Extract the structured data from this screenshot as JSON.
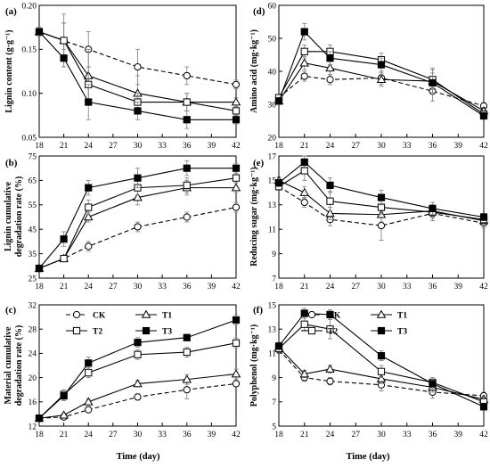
{
  "chart_data": [
    {
      "panel": "a",
      "panel_label": "(a)",
      "type": "line",
      "ylabel": "Lignin content (g·g⁻¹)",
      "xlabel": "",
      "x": [
        18,
        21,
        24,
        30,
        36,
        42
      ],
      "xticks": [
        18,
        21,
        24,
        27,
        30,
        33,
        36,
        39,
        42
      ],
      "xlim": [
        18,
        42
      ],
      "ylim": [
        0.05,
        0.2
      ],
      "yticks": [
        0.05,
        0.1,
        0.15,
        0.2
      ],
      "ytick_labels": [
        "0.05",
        "0.10",
        "0.15",
        "0.20"
      ],
      "series": [
        {
          "name": "CK",
          "values": [
            0.17,
            0.16,
            0.15,
            0.13,
            0.12,
            0.11
          ],
          "errors": [
            0.005,
            0.03,
            0.02,
            0.02,
            0.01,
            0.005
          ]
        },
        {
          "name": "T1",
          "values": [
            0.17,
            0.16,
            0.12,
            0.1,
            0.09,
            0.09
          ],
          "errors": [
            0.005,
            0.02,
            0.03,
            0.02,
            0.01,
            0.005
          ]
        },
        {
          "name": "T2",
          "values": [
            0.17,
            0.16,
            0.11,
            0.09,
            0.09,
            0.08
          ],
          "errors": [
            0.005,
            0.02,
            0.02,
            0.01,
            0.01,
            0.005
          ]
        },
        {
          "name": "T3",
          "values": [
            0.17,
            0.14,
            0.09,
            0.08,
            0.07,
            0.07
          ],
          "errors": [
            0.005,
            0.01,
            0.02,
            0.01,
            0.01,
            0.005
          ]
        }
      ]
    },
    {
      "panel": "b",
      "panel_label": "(b)",
      "type": "line",
      "ylabel": "Lignin cumulative degradation rate (%)",
      "xlabel": "",
      "x": [
        18,
        21,
        24,
        30,
        36,
        42
      ],
      "xticks": [
        18,
        21,
        24,
        27,
        30,
        33,
        36,
        39,
        42
      ],
      "xlim": [
        18,
        42
      ],
      "ylim": [
        25,
        75
      ],
      "yticks": [
        25,
        35,
        45,
        55,
        65,
        75
      ],
      "ytick_labels": [
        "25",
        "35",
        "45",
        "55",
        "65",
        "75"
      ],
      "series": [
        {
          "name": "CK",
          "values": [
            29,
            33,
            38,
            46,
            50,
            54
          ],
          "errors": [
            1,
            1,
            2,
            2,
            2,
            2
          ]
        },
        {
          "name": "T1",
          "values": [
            29,
            33,
            50,
            58,
            62,
            62
          ],
          "errors": [
            1,
            1,
            2,
            3,
            3,
            2
          ]
        },
        {
          "name": "T2",
          "values": [
            29,
            33,
            54,
            62,
            63,
            66
          ],
          "errors": [
            1,
            1,
            3,
            3,
            3,
            2
          ]
        },
        {
          "name": "T3",
          "values": [
            29,
            41,
            62,
            66,
            70,
            70
          ],
          "errors": [
            1,
            3,
            3,
            4,
            3,
            2
          ]
        }
      ]
    },
    {
      "panel": "c",
      "panel_label": "(c)",
      "type": "line",
      "ylabel": "Material cumulative degradation rate (%)",
      "xlabel": "Time (day)",
      "x": [
        18,
        21,
        24,
        30,
        36,
        42
      ],
      "xticks": [
        18,
        21,
        24,
        27,
        30,
        33,
        36,
        39,
        42
      ],
      "xlim": [
        18,
        42
      ],
      "ylim": [
        12,
        32
      ],
      "yticks": [
        12,
        16,
        20,
        24,
        28,
        32
      ],
      "ytick_labels": [
        "12",
        "16",
        "20",
        "24",
        "28",
        "32"
      ],
      "series": [
        {
          "name": "CK",
          "values": [
            13.3,
            13.5,
            14.7,
            16.8,
            18.0,
            19.0
          ],
          "errors": [
            0.3,
            0.3,
            0.5,
            0.5,
            1.5,
            0.5
          ]
        },
        {
          "name": "T1",
          "values": [
            13.3,
            13.8,
            16.0,
            19.0,
            19.7,
            20.6
          ],
          "errors": [
            0.3,
            0.3,
            0.5,
            0.5,
            0.8,
            0.8
          ]
        },
        {
          "name": "T2",
          "values": [
            13.3,
            17.2,
            20.8,
            23.8,
            24.2,
            25.7
          ],
          "errors": [
            0.3,
            0.8,
            0.8,
            0.8,
            0.8,
            0.8
          ]
        },
        {
          "name": "T3",
          "values": [
            13.3,
            17.0,
            22.4,
            25.8,
            26.6,
            29.5
          ],
          "errors": [
            0.3,
            0.8,
            1.0,
            0.8,
            0.5,
            0.8
          ]
        }
      ],
      "legend": {
        "placement": "top",
        "entries": [
          "CK",
          "T1",
          "T2",
          "T3"
        ]
      }
    },
    {
      "panel": "d",
      "panel_label": "(d)",
      "type": "line",
      "ylabel": "Amino acid (mg·kg⁻¹)",
      "xlabel": "",
      "x": [
        18,
        21,
        24,
        30,
        36,
        42
      ],
      "xticks": [
        18,
        21,
        24,
        27,
        30,
        33,
        36,
        39,
        42
      ],
      "xlim": [
        18,
        42
      ],
      "ylim": [
        20,
        60
      ],
      "yticks": [
        20,
        30,
        40,
        50,
        60
      ],
      "ytick_labels": [
        "20",
        "30",
        "40",
        "50",
        "60"
      ],
      "series": [
        {
          "name": "CK",
          "values": [
            32,
            38.5,
            37.5,
            38,
            34,
            29.5
          ],
          "errors": [
            1,
            1.5,
            1.5,
            2,
            3,
            1
          ]
        },
        {
          "name": "T1",
          "values": [
            31,
            42.5,
            41,
            37.5,
            37,
            28
          ],
          "errors": [
            1,
            2,
            2,
            2,
            4,
            1
          ]
        },
        {
          "name": "T2",
          "values": [
            32,
            46,
            46,
            43.5,
            37.5,
            27
          ],
          "errors": [
            1,
            2,
            2,
            2,
            3,
            1
          ]
        },
        {
          "name": "T3",
          "values": [
            31,
            52,
            44,
            42,
            36.5,
            26.5
          ],
          "errors": [
            1,
            2.5,
            2,
            2,
            3,
            1
          ]
        }
      ]
    },
    {
      "panel": "e",
      "panel_label": "(e)",
      "type": "line",
      "ylabel": "Reducing sugar (mg·kg⁻¹)",
      "xlabel": "",
      "x": [
        18,
        21,
        24,
        30,
        36,
        42
      ],
      "xticks": [
        18,
        21,
        24,
        27,
        30,
        33,
        36,
        39,
        42
      ],
      "xlim": [
        18,
        42
      ],
      "ylim": [
        7,
        17
      ],
      "yticks": [
        7,
        9,
        11,
        13,
        15,
        17
      ],
      "ytick_labels": [
        "7",
        "9",
        "11",
        "13",
        "15",
        "17"
      ],
      "series": [
        {
          "name": "CK",
          "values": [
            14.5,
            13.2,
            11.8,
            11.3,
            12.3,
            11.5
          ],
          "errors": [
            0.3,
            0.4,
            0.5,
            1.2,
            0.6,
            0.4
          ]
        },
        {
          "name": "T1",
          "values": [
            15.0,
            14.0,
            12.3,
            12.2,
            12.5,
            11.7
          ],
          "errors": [
            0.3,
            0.5,
            0.5,
            0.6,
            0.5,
            0.4
          ]
        },
        {
          "name": "T2",
          "values": [
            14.5,
            15.8,
            13.3,
            12.8,
            12.4,
            11.8
          ],
          "errors": [
            0.3,
            0.8,
            0.8,
            0.6,
            0.5,
            0.4
          ]
        },
        {
          "name": "T3",
          "values": [
            14.8,
            16.5,
            14.6,
            13.6,
            12.7,
            12.0
          ],
          "errors": [
            0.3,
            0.5,
            0.6,
            0.6,
            0.5,
            0.3
          ]
        }
      ]
    },
    {
      "panel": "f",
      "panel_label": "(f)",
      "type": "line",
      "ylabel": "Polyphenol (mg·kg⁻¹)",
      "xlabel": "Time (day)",
      "x": [
        18,
        21,
        24,
        30,
        36,
        42
      ],
      "xticks": [
        18,
        21,
        24,
        27,
        30,
        33,
        36,
        39,
        42
      ],
      "xlim": [
        18,
        42
      ],
      "ylim": [
        5,
        15
      ],
      "yticks": [
        5,
        7,
        9,
        11,
        13,
        15
      ],
      "ytick_labels": [
        "5",
        "7",
        "9",
        "11",
        "13",
        "15"
      ],
      "series": [
        {
          "name": "CK",
          "values": [
            11.3,
            9.0,
            8.7,
            8.4,
            7.8,
            7.5
          ],
          "errors": [
            0.3,
            0.3,
            0.3,
            0.5,
            0.5,
            0.3
          ]
        },
        {
          "name": "T1",
          "values": [
            11.5,
            9.3,
            9.7,
            8.9,
            8.2,
            7.2
          ],
          "errors": [
            0.3,
            0.3,
            0.3,
            0.4,
            0.4,
            0.3
          ]
        },
        {
          "name": "T2",
          "values": [
            11.4,
            13.4,
            13.0,
            9.5,
            8.6,
            7.0
          ],
          "errors": [
            0.3,
            0.5,
            0.8,
            0.5,
            0.4,
            0.3
          ]
        },
        {
          "name": "T3",
          "values": [
            11.6,
            14.3,
            14.2,
            10.8,
            8.5,
            6.6
          ],
          "errors": [
            0.3,
            0.4,
            0.4,
            0.4,
            0.4,
            0.3
          ]
        }
      ],
      "legend": {
        "placement": "top",
        "entries": [
          "CK",
          "T1",
          "T2",
          "T3"
        ]
      }
    }
  ]
}
